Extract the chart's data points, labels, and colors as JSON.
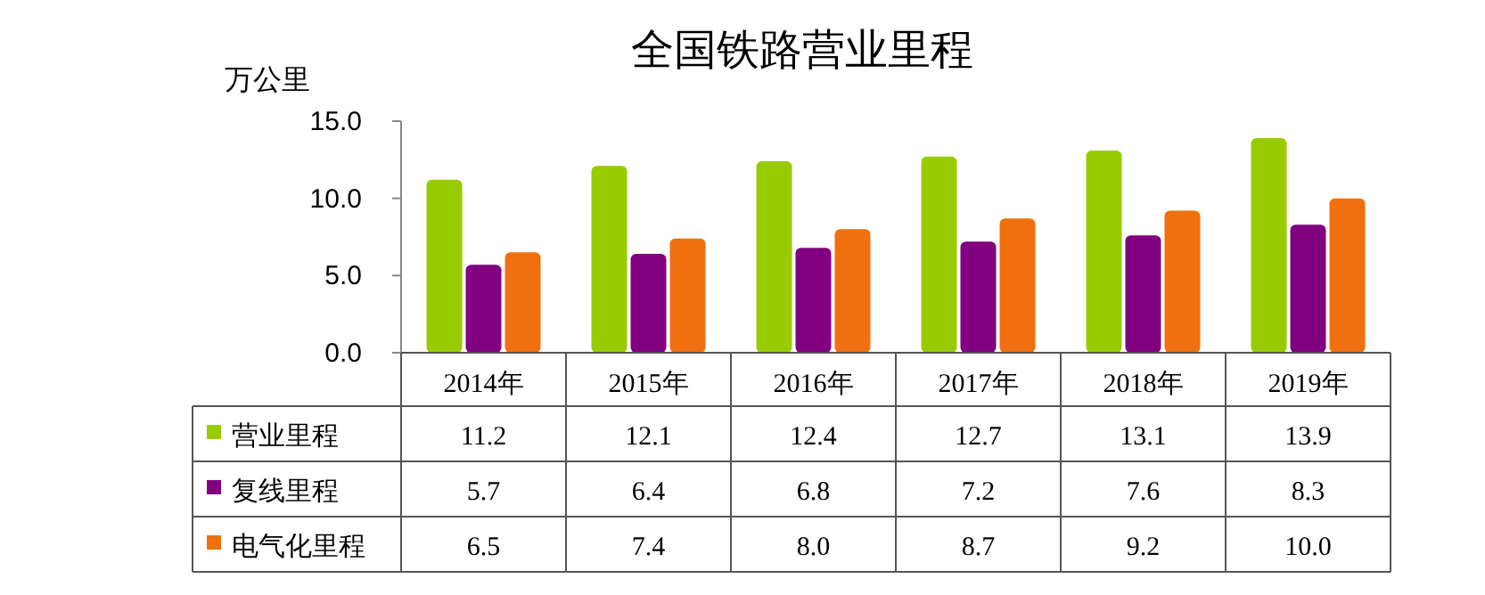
{
  "chart_data": {
    "type": "bar",
    "title": "全国铁路营业里程",
    "ylabel": "万公里",
    "categories": [
      "2014年",
      "2015年",
      "2016年",
      "2017年",
      "2018年",
      "2019年"
    ],
    "series": [
      {
        "name": "营业里程",
        "color": "#99cc00",
        "values": [
          11.2,
          12.1,
          12.4,
          12.7,
          13.1,
          13.9
        ],
        "value_labels": [
          "11.2",
          "12.1",
          "12.4",
          "12.7",
          "13.1",
          "13.9"
        ]
      },
      {
        "name": "复线里程",
        "color": "#800080",
        "values": [
          5.7,
          6.4,
          6.8,
          7.2,
          7.6,
          8.3
        ],
        "value_labels": [
          "5.7",
          "6.4",
          "6.8",
          "7.2",
          "7.6",
          "8.3"
        ]
      },
      {
        "name": "电气化里程",
        "color": "#f07010",
        "values": [
          6.5,
          7.4,
          8.0,
          8.7,
          9.2,
          10.0
        ],
        "value_labels": [
          "6.5",
          "7.4",
          "8.0",
          "8.7",
          "9.2",
          "10.0"
        ]
      }
    ],
    "ylim": [
      0,
      15
    ],
    "yticks": [
      {
        "value": 0,
        "label": "0.0"
      },
      {
        "value": 5,
        "label": "5.0"
      },
      {
        "value": 10,
        "label": "10.0"
      },
      {
        "value": 15,
        "label": "15.0"
      }
    ],
    "legend": "bottom",
    "grid": false
  }
}
